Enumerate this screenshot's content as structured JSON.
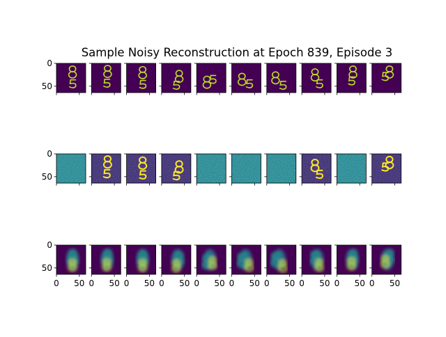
{
  "chart_data": {
    "type": "heatmap",
    "title": "Sample Noisy Reconstruction at Epoch 839, Episode 3",
    "layout": {
      "rows": 3,
      "cols": 10
    },
    "row_roles": [
      "clean",
      "noisy",
      "reconstruction"
    ],
    "image_size": [
      64,
      64
    ],
    "colormap": "viridis",
    "colors": {
      "low": "#440154",
      "mid": "#21918c",
      "high": "#bddf26",
      "peak": "#fde725"
    },
    "ytick_labels": [
      "0",
      "50"
    ],
    "xtick_labels": [
      "0",
      "50"
    ],
    "ylim": [
      64,
      0
    ],
    "xlim": [
      0,
      64
    ],
    "noisy_columns": [
      0,
      4,
      5,
      6,
      8
    ],
    "digits": [
      {
        "a": [
          0.55,
          0.3
        ],
        "b": [
          0.55,
          0.7
        ]
      },
      {
        "a": [
          0.55,
          0.28
        ],
        "b": [
          0.52,
          0.68
        ]
      },
      {
        "a": [
          0.55,
          0.32
        ],
        "b": [
          0.55,
          0.72
        ]
      },
      {
        "a": [
          0.6,
          0.45
        ],
        "b": [
          0.5,
          0.75
        ]
      },
      {
        "a": [
          0.35,
          0.65
        ],
        "b": [
          0.55,
          0.55
        ]
      },
      {
        "a": [
          0.35,
          0.55
        ],
        "b": [
          0.6,
          0.7
        ]
      },
      {
        "a": [
          0.3,
          0.5
        ],
        "b": [
          0.55,
          0.75
        ]
      },
      {
        "a": [
          0.45,
          0.4
        ],
        "b": [
          0.6,
          0.7
        ]
      },
      {
        "a": [
          0.55,
          0.3
        ],
        "b": [
          0.5,
          0.6
        ]
      },
      {
        "a": [
          0.6,
          0.3
        ],
        "b": [
          0.45,
          0.45
        ]
      }
    ]
  }
}
